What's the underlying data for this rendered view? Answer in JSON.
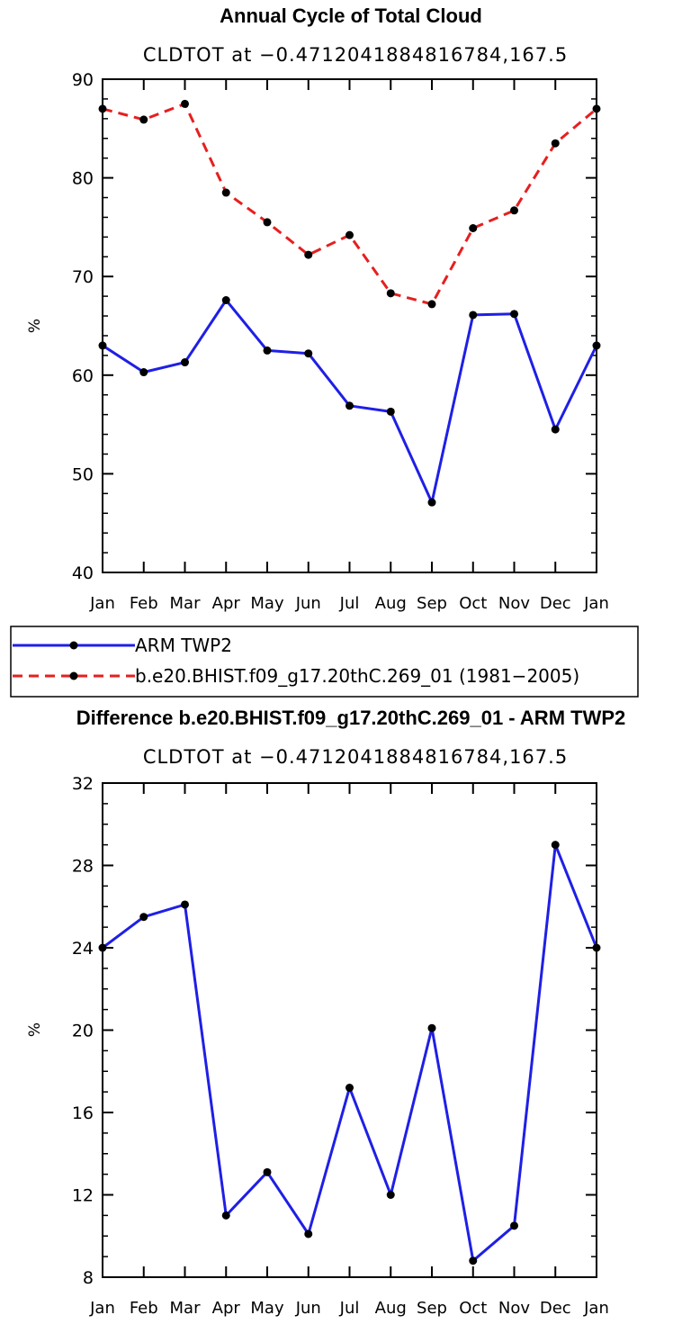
{
  "chart_data": [
    {
      "type": "line",
      "title": "Annual Cycle of Total Cloud",
      "subtitle": "CLDTOT at −0.4712041884816784,167.5",
      "xlabel": "",
      "ylabel": "%",
      "ylim": [
        40,
        90
      ],
      "yticks": [
        "40",
        "50",
        "60",
        "70",
        "80",
        "90"
      ],
      "categories": [
        "Jan",
        "Feb",
        "Mar",
        "Apr",
        "May",
        "Jun",
        "Jul",
        "Aug",
        "Sep",
        "Oct",
        "Nov",
        "Dec",
        "Jan"
      ],
      "series": [
        {
          "name": "ARM TWP2",
          "color": "#1f1fe6",
          "dash": "solid",
          "values": [
            63.0,
            60.3,
            61.3,
            67.6,
            62.5,
            62.2,
            56.9,
            56.3,
            47.1,
            66.1,
            66.2,
            54.5,
            63.0
          ]
        },
        {
          "name": "b.e20.BHIST.f09_g17.20thC.269_01 (1981−2005)",
          "color": "#e61f1f",
          "dash": "dashed",
          "values": [
            87.0,
            85.9,
            87.5,
            78.5,
            75.5,
            72.2,
            74.2,
            68.3,
            67.2,
            74.9,
            76.7,
            83.5,
            87.0
          ]
        }
      ],
      "grid": false,
      "legend": "below"
    },
    {
      "type": "line",
      "title": "Difference b.e20.BHIST.f09_g17.20thC.269_01 - ARM TWP2",
      "subtitle": "CLDTOT at −0.4712041884816784,167.5",
      "xlabel": "",
      "ylabel": "%",
      "ylim": [
        8,
        32
      ],
      "yticks": [
        "8",
        "12",
        "16",
        "20",
        "24",
        "28",
        "32"
      ],
      "categories": [
        "Jan",
        "Feb",
        "Mar",
        "Apr",
        "May",
        "Jun",
        "Jul",
        "Aug",
        "Sep",
        "Oct",
        "Nov",
        "Dec",
        "Jan"
      ],
      "series": [
        {
          "name": "",
          "color": "#1f1fe6",
          "dash": "solid",
          "values": [
            24.0,
            25.5,
            26.1,
            11.0,
            13.1,
            10.1,
            17.2,
            12.0,
            20.1,
            8.8,
            10.5,
            29.0,
            24.0
          ]
        }
      ],
      "grid": false,
      "legend": "none"
    }
  ]
}
